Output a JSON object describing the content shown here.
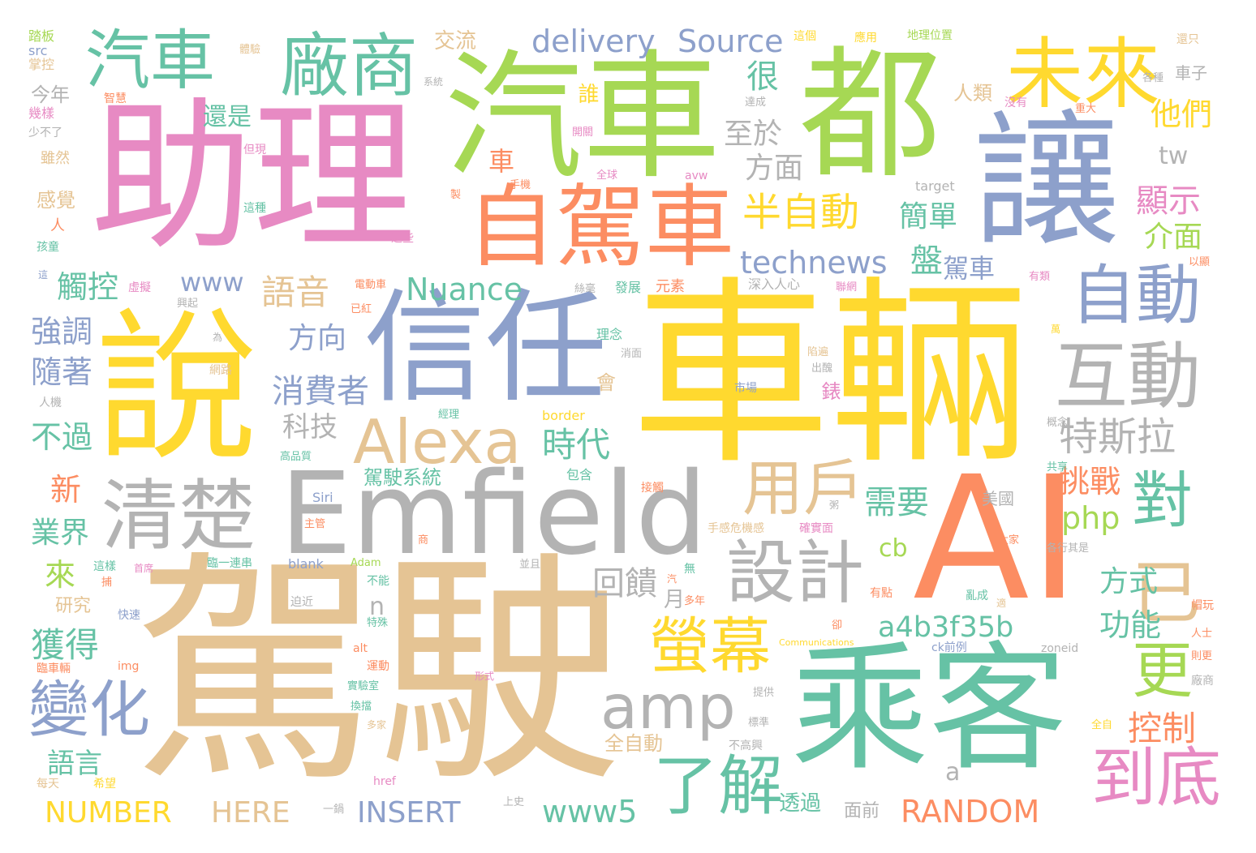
{
  "words": {
    "w1": "車輛",
    "w2": "駕駛",
    "w3": "助理",
    "w4": "汽車",
    "w5": "都",
    "w6": "讓",
    "w7": "說",
    "w8": "信任",
    "w9": "AI",
    "w10": "乘客",
    "w11": "Emfield",
    "w12": "自駕車",
    "w13": "清楚",
    "w14": "未來",
    "w15": "汽車",
    "w16": "廠商",
    "w17": "互動",
    "w18": "自動",
    "w19": "Alexa",
    "w20": "設計",
    "w21": "amp",
    "w22": "用戶",
    "w23": "對",
    "w24": "已",
    "w25": "螢幕",
    "w26": "了解",
    "w27": "到底",
    "w28": "更",
    "w29": "變化",
    "w30": "delivery",
    "w31": "Source",
    "w32": "technews",
    "w33": "特斯拉",
    "w34": "半自動",
    "w35": "回饋",
    "w36": "消費者",
    "w37": "語音",
    "w38": "時代",
    "w39": "Nuance",
    "w40": "a4b3f35b",
    "w41": "RANDOM",
    "w42": "NUMBER",
    "w43": "HERE",
    "w44": "INSERT",
    "w45": "www5",
    "w46": "控制",
    "w47": "獲得",
    "w48": "功能",
    "w49": "方式",
    "w50": "需要",
    "w51": "php",
    "w52": "挑戰",
    "w53": "簡單",
    "w54": "顯示",
    "w55": "介面",
    "w56": "很",
    "w57": "他們",
    "w58": "至於",
    "w59": "方面",
    "w60": "方向",
    "w61": "科技",
    "w62": "www",
    "w63": "觸控",
    "w64": "強調",
    "w65": "隨著",
    "w66": "不過",
    "w67": "業界",
    "w68": "新",
    "w69": "來",
    "w70": "語言",
    "w71": "還是",
    "w72": "今年",
    "w73": "交流",
    "w74": "誰",
    "w75": "車",
    "w76": "盤",
    "w77": "駕車",
    "w78": "人類",
    "w79": "tw",
    "w80": "cb",
    "w81": "n",
    "w82": "月",
    "w83": "a",
    "w84": "駕駛系統",
    "w85": "全自動",
    "w86": "透過",
    "w87": "面前",
    "w88": "研究",
    "w89": "感覺",
    "w90": "錶",
    "w91": "會",
    "w92": "美國",
    "w93": "車子",
    "w94": "還只",
    "w95": "應用",
    "w96": "地理位置",
    "w97": "這個",
    "w98": "體驗",
    "w99": "掌控",
    "w100": "踏板",
    "w101": "src",
    "w102": "系統",
    "w103": "智慧",
    "w104": "幾樣",
    "w105": "少不了",
    "w106": "雖然",
    "w107": "人",
    "w108": "孩童",
    "w109": "這",
    "w110": "虛擬",
    "w111": "但現",
    "w112": "這種",
    "w113": "這些",
    "w114": "手機",
    "w115": "全球",
    "w116": "avw",
    "w117": "target",
    "w118": "達成",
    "w119": "沒有",
    "w120": "重大",
    "w121": "開關",
    "w122": "各種",
    "w123": "深入人心",
    "w124": "聯網",
    "w125": "有類",
    "w126": "以顯",
    "w127": "電動車",
    "w128": "絲毫",
    "w129": "發展",
    "w130": "元素",
    "w131": "理念",
    "w132": "為",
    "w133": "網路",
    "w134": "市場",
    "w135": "經理",
    "w136": "border",
    "w137": "概念",
    "w138": "共享",
    "w139": "包含",
    "w140": "接觸",
    "w141": "Siri",
    "w142": "主管",
    "w143": "手感危機感",
    "w144": "確實面",
    "w145": "大家",
    "w146": "各行其是",
    "w147": "blank",
    "w148": "Adam",
    "w149": "臨一連串",
    "w150": "這樣",
    "w151": "首席",
    "w152": "不能",
    "w153": "並且",
    "w154": "無",
    "w155": "汽",
    "w156": "多年",
    "w157": "有點",
    "w158": "亂成",
    "w159": "帽玩",
    "w160": "人士",
    "w161": "迫近",
    "w162": "快速",
    "w163": "特殊",
    "w164": "Communications",
    "w165": "ck前例",
    "w166": "zoneid",
    "w167": "則更",
    "w168": "alt",
    "w169": "img",
    "w170": "運動",
    "w171": "實驗室",
    "w172": "形式",
    "w173": "廠商",
    "w174": "提供",
    "w175": "換擋",
    "w176": "多家",
    "w177": "標準",
    "w178": "不高興",
    "w179": "全自",
    "w180": "href",
    "w181": "希望",
    "w182": "每天",
    "w183": "一鍋",
    "w184": "上史",
    "w185": "臨車輛",
    "w186": "陷遍",
    "w187": "出醜",
    "w188": "製",
    "w189": "人機",
    "w190": "興起",
    "w191": "高品質",
    "w192": "卻",
    "w193": "消面",
    "w194": "已紅",
    "w195": "適",
    "w196": "商",
    "w197": "粥",
    "w198": "捕",
    "w199": "萬"
  },
  "palette": {
    "tan": "#e5c494",
    "gold": "#ffd92f",
    "pink": "#e78ac3",
    "lime": "#a6d854",
    "teal": "#66c2a5",
    "orange": "#fc8d62",
    "blue": "#8da0cb",
    "gray": "#b3b3b3"
  }
}
